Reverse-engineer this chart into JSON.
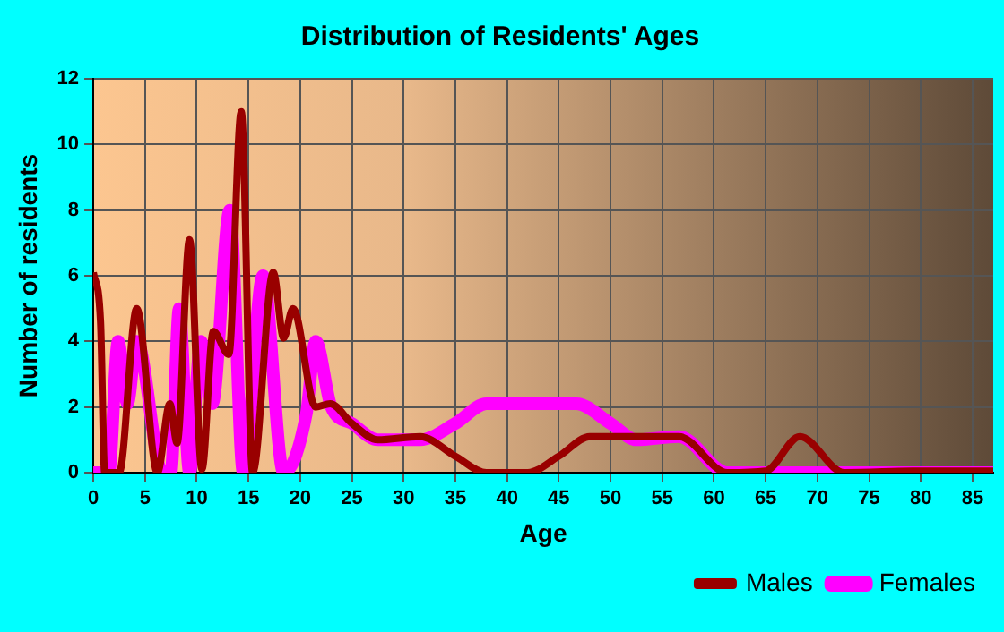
{
  "chart_data": {
    "type": "line",
    "title": "Distribution of Residents' Ages",
    "xlabel": "Age",
    "ylabel": "Number of residents",
    "xlim": [
      0,
      87
    ],
    "xticks": [
      0,
      5,
      10,
      15,
      20,
      25,
      30,
      35,
      40,
      45,
      50,
      55,
      60,
      65,
      70,
      75,
      80,
      85
    ],
    "ylim": [
      0,
      12
    ],
    "yticks": [
      0,
      2,
      4,
      6,
      8,
      10,
      12
    ],
    "grid": true,
    "legend": "bottom right",
    "marker": "none",
    "line_style": "solid",
    "series": [
      {
        "name": "Males",
        "color": "#990000",
        "x": [
          0,
          0.7,
          1.1,
          2.5,
          4.2,
          6.2,
          7.4,
          8.1,
          9.3,
          10.5,
          11.6,
          13.1,
          14.3,
          15.4,
          17.4,
          18.4,
          19.3,
          21.5,
          22.9,
          25,
          27.5,
          31.6,
          35,
          38,
          42,
          45,
          48,
          52.5,
          56.6,
          61.3,
          65,
          68.3,
          72.6,
          80,
          87
        ],
        "values": [
          6.1,
          4.6,
          0,
          0,
          5,
          0,
          2.1,
          0.9,
          7.1,
          0.1,
          4.3,
          3.6,
          11,
          0,
          6.1,
          4.1,
          5,
          2,
          2.1,
          1.5,
          1,
          1.1,
          0.5,
          0,
          0,
          0.5,
          1.1,
          1.1,
          1.1,
          0,
          0.05,
          1.1,
          0,
          0.05,
          0.05
        ]
      },
      {
        "name": "Females",
        "color": "#ff00ff",
        "x": [
          0,
          1.5,
          2.4,
          3.3,
          4.2,
          6.7,
          7.5,
          8.3,
          9.3,
          10.4,
          11.5,
          13.2,
          14.5,
          16.4,
          18.4,
          20.6,
          21.5,
          23,
          25,
          27.5,
          31.6,
          35,
          38,
          42,
          46.7,
          50,
          52.5,
          56.6,
          61.3,
          65,
          70,
          80,
          87
        ],
        "values": [
          0,
          0,
          4,
          2.1,
          4,
          0,
          0,
          5,
          0,
          4,
          2.1,
          8,
          0,
          6,
          0,
          1.8,
          4,
          2,
          1.5,
          1,
          1,
          1.5,
          2.1,
          2.1,
          2.1,
          1.5,
          1,
          1.1,
          0,
          0,
          0,
          0,
          0
        ]
      }
    ]
  }
}
